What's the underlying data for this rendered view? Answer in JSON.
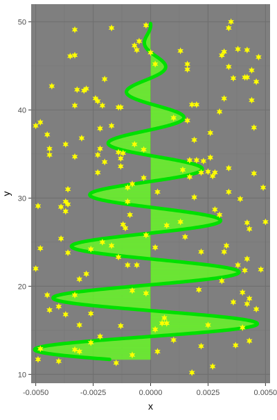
{
  "colors": {
    "panel_bg": "#7f7f7f",
    "grid_major": "#6f6f6f",
    "grid_minor": "#777777",
    "spiral_line": "#00e000",
    "spiral_fill": "#66ff22",
    "stars": "#ffff00",
    "tick_text": "#4d4d4d",
    "axis_title": "#000000"
  },
  "chart_data": {
    "type": "scatter",
    "title": "",
    "xlabel": "x",
    "ylabel": "y",
    "xlim": [
      -0.0052,
      0.0052
    ],
    "ylim": [
      9.0,
      52.0
    ],
    "x_ticks": [
      -0.005,
      -0.0025,
      0.0,
      0.0025,
      0.005
    ],
    "x_tick_labels": [
      "-0.0050",
      "-0.0025",
      "0.0000",
      "0.0025",
      "0.0050"
    ],
    "y_ticks": [
      10,
      20,
      30,
      40,
      50
    ],
    "y_tick_labels": [
      "10",
      "20",
      "30",
      "40",
      "50"
    ],
    "grid": true,
    "legend": "none",
    "spiral": {
      "description_points": "damped sine spiral: x = a(y)·sin(phase), amplitude shrinking with y",
      "y_start": 11.7,
      "y_end": 49.8,
      "amplitude_start": 0.0052,
      "amplitude_end": 0.0,
      "turns": 6.5,
      "fill_from_center": true
    },
    "stars": [
      {
        "x": -0.0049,
        "y": 11.7
      },
      {
        "x": -0.0048,
        "y": 12.9
      },
      {
        "x": -0.004,
        "y": 11.5
      },
      {
        "x": -0.0033,
        "y": 12.8
      },
      {
        "x": -0.0031,
        "y": 12.6
      },
      {
        "x": -0.0015,
        "y": 11.3
      },
      {
        "x": -0.0008,
        "y": 12.2
      },
      {
        "x": 0.0003,
        "y": 12.6
      },
      {
        "x": 0.0018,
        "y": 10.2
      },
      {
        "x": 0.0027,
        "y": 10.9
      },
      {
        "x": 0.0037,
        "y": 13.3
      },
      {
        "x": 0.0043,
        "y": 13.8
      },
      {
        "x": 0.001,
        "y": 13.9
      },
      {
        "x": -0.0022,
        "y": 14.3
      },
      {
        "x": 0.0025,
        "y": 15.6
      },
      {
        "x": -0.0037,
        "y": 16.8
      },
      {
        "x": -0.0044,
        "y": 17.3
      },
      {
        "x": -0.004,
        "y": 17.7
      },
      {
        "x": -0.0026,
        "y": 16.9
      },
      {
        "x": -0.0013,
        "y": 15.5
      },
      {
        "x": 0.0005,
        "y": 15.8
      },
      {
        "x": 0.0006,
        "y": 16.4
      },
      {
        "x": 0.0007,
        "y": 15.8
      },
      {
        "x": 0.0002,
        "y": 15.1
      },
      {
        "x": 0.004,
        "y": 15.3
      },
      {
        "x": 0.0046,
        "y": 17.4
      },
      {
        "x": 0.0043,
        "y": 18.6
      },
      {
        "x": 0.0042,
        "y": 18.0
      },
      {
        "x": -0.0008,
        "y": 19.5
      },
      {
        "x": -0.0033,
        "y": 19.0
      },
      {
        "x": -0.0031,
        "y": 20.8
      },
      {
        "x": -0.0028,
        "y": 21.4
      },
      {
        "x": -0.005,
        "y": 22.0
      },
      {
        "x": -0.0048,
        "y": 24.3
      },
      {
        "x": -0.0036,
        "y": 23.8
      },
      {
        "x": -0.0026,
        "y": 24.2
      },
      {
        "x": -0.0014,
        "y": 23.3
      },
      {
        "x": -0.001,
        "y": 22.4
      },
      {
        "x": -0.0006,
        "y": 22.4
      },
      {
        "x": 0.0002,
        "y": 24.4
      },
      {
        "x": 0.0015,
        "y": 25.6
      },
      {
        "x": 0.0022,
        "y": 23.9
      },
      {
        "x": 0.0031,
        "y": 20.6
      },
      {
        "x": 0.0033,
        "y": 24.6
      },
      {
        "x": 0.0032,
        "y": 23.9
      },
      {
        "x": 0.0038,
        "y": 22.4
      },
      {
        "x": 0.0041,
        "y": 21.8
      },
      {
        "x": 0.0042,
        "y": 23.1
      },
      {
        "x": 0.0048,
        "y": 21.9
      },
      {
        "x": -0.0039,
        "y": 25.4
      },
      {
        "x": -0.0021,
        "y": 25.0
      },
      {
        "x": -0.0002,
        "y": 25.8
      },
      {
        "x": 0.0007,
        "y": 26.9
      },
      {
        "x": 0.0013,
        "y": 27.3
      },
      {
        "x": -0.0012,
        "y": 27.0
      },
      {
        "x": -0.0011,
        "y": 26.6
      },
      {
        "x": 0.0028,
        "y": 28.7
      },
      {
        "x": 0.003,
        "y": 28.1
      },
      {
        "x": 0.0042,
        "y": 27.2
      },
      {
        "x": 0.0043,
        "y": 26.5
      },
      {
        "x": 0.005,
        "y": 27.3
      },
      {
        "x": -0.0049,
        "y": 29.1
      },
      {
        "x": -0.0039,
        "y": 29.0
      },
      {
        "x": -0.0037,
        "y": 28.5
      },
      {
        "x": -0.0037,
        "y": 29.6
      },
      {
        "x": -0.0036,
        "y": 29.3
      },
      {
        "x": -0.001,
        "y": 29.6
      },
      {
        "x": -0.0009,
        "y": 28.1
      },
      {
        "x": 0.0003,
        "y": 30.7
      },
      {
        "x": 0.0019,
        "y": 30.1
      },
      {
        "x": 0.0034,
        "y": 30.7
      },
      {
        "x": 0.0039,
        "y": 29.9
      },
      {
        "x": 0.0049,
        "y": 31.2
      },
      {
        "x": -0.001,
        "y": 31.2
      },
      {
        "x": -0.0008,
        "y": 31.6
      },
      {
        "x": -0.0003,
        "y": 32.3
      },
      {
        "x": 0.0017,
        "y": 32.4
      },
      {
        "x": 0.0022,
        "y": 32.9
      },
      {
        "x": 0.0025,
        "y": 33.0
      },
      {
        "x": 0.0027,
        "y": 32.5
      },
      {
        "x": 0.0028,
        "y": 32.9
      },
      {
        "x": 0.0034,
        "y": 33.4
      },
      {
        "x": 0.0045,
        "y": 32.8
      },
      {
        "x": -0.0023,
        "y": 32.9
      },
      {
        "x": -0.0013,
        "y": 33.6
      },
      {
        "x": 0.0014,
        "y": 33.2
      },
      {
        "x": 0.002,
        "y": 34.3
      },
      {
        "x": 0.0023,
        "y": 34.2
      },
      {
        "x": 0.0026,
        "y": 34.6
      },
      {
        "x": 0.0017,
        "y": 34.3
      },
      {
        "x": -0.0044,
        "y": 34.9
      },
      {
        "x": -0.0037,
        "y": 36.1
      },
      {
        "x": -0.0044,
        "y": 35.6
      },
      {
        "x": -0.0033,
        "y": 34.7
      },
      {
        "x": -0.0023,
        "y": 34.9
      },
      {
        "x": -0.0022,
        "y": 35.6
      },
      {
        "x": -0.002,
        "y": 34.1
      },
      {
        "x": -0.0013,
        "y": 34.5
      },
      {
        "x": -0.0014,
        "y": 35.2
      },
      {
        "x": -0.0003,
        "y": 35.5
      },
      {
        "x": -0.003,
        "y": 36.8
      },
      {
        "x": -0.0007,
        "y": 36.1
      },
      {
        "x": -0.0012,
        "y": 35.1
      },
      {
        "x": -0.0045,
        "y": 37.2
      },
      {
        "x": -0.005,
        "y": 38.2
      },
      {
        "x": -0.0048,
        "y": 38.6
      },
      {
        "x": -0.0017,
        "y": 38.2
      },
      {
        "x": 0.001,
        "y": 39.1
      },
      {
        "x": -0.0014,
        "y": 40.3
      },
      {
        "x": -0.0013,
        "y": 40.3
      },
      {
        "x": -0.0021,
        "y": 40.5
      },
      {
        "x": -0.0033,
        "y": 40.5
      },
      {
        "x": 0.002,
        "y": 40.6
      },
      {
        "x": 0.003,
        "y": 39.8
      },
      {
        "x": 0.0045,
        "y": 38.0
      },
      {
        "x": 0.0018,
        "y": 40.6
      },
      {
        "x": 0.0032,
        "y": 41.3
      },
      {
        "x": 0.0044,
        "y": 41.1
      },
      {
        "x": -0.0023,
        "y": 41.0
      },
      {
        "x": -0.0024,
        "y": 41.3
      },
      {
        "x": -0.0032,
        "y": 42.3
      },
      {
        "x": -0.0029,
        "y": 42.2
      },
      {
        "x": -0.0028,
        "y": 42.4
      },
      {
        "x": -0.0043,
        "y": 42.7
      },
      {
        "x": -0.002,
        "y": 43.5
      },
      {
        "x": 0.0036,
        "y": 43.6
      },
      {
        "x": 0.0041,
        "y": 43.7
      },
      {
        "x": 0.0046,
        "y": 43.2
      },
      {
        "x": 0.0042,
        "y": 43.7
      },
      {
        "x": 0.0044,
        "y": 44.5
      },
      {
        "x": 0.0034,
        "y": 44.9
      },
      {
        "x": 0.0016,
        "y": 44.6
      },
      {
        "x": 0.0016,
        "y": 45.2
      },
      {
        "x": 0.0002,
        "y": 45.2
      },
      {
        "x": 0.0,
        "y": 46.5
      },
      {
        "x": -0.0035,
        "y": 46.1
      },
      {
        "x": -0.0033,
        "y": 46.2
      },
      {
        "x": 0.0013,
        "y": 46.7
      },
      {
        "x": 0.0032,
        "y": 46.6
      },
      {
        "x": 0.0042,
        "y": 46.8
      },
      {
        "x": 0.0038,
        "y": 46.9
      },
      {
        "x": 0.0031,
        "y": 46.2
      },
      {
        "x": 0.0047,
        "y": 46.0
      },
      {
        "x": -0.0007,
        "y": 47.3
      },
      {
        "x": -0.0005,
        "y": 47.8
      },
      {
        "x": -0.0006,
        "y": 46.8
      },
      {
        "x": -0.0033,
        "y": 49.1
      },
      {
        "x": -0.0017,
        "y": 49.3
      },
      {
        "x": -0.0002,
        "y": 49.6
      },
      {
        "x": 0.0035,
        "y": 50.0
      },
      {
        "x": 0.0034,
        "y": 49.3
      },
      {
        "x": -0.0022,
        "y": 37.9
      },
      {
        "x": 0.0026,
        "y": 37.4
      },
      {
        "x": 0.0019,
        "y": 36.6
      },
      {
        "x": -0.0036,
        "y": 31.0
      },
      {
        "x": 0.0016,
        "y": 38.8
      },
      {
        "x": -0.0017,
        "y": 24.6
      },
      {
        "x": -0.0031,
        "y": 15.6
      },
      {
        "x": -0.0026,
        "y": 13.6
      },
      {
        "x": 0.0022,
        "y": 13.2
      },
      {
        "x": 0.0036,
        "y": 18.2
      },
      {
        "x": 0.004,
        "y": 19.3
      },
      {
        "x": -0.0045,
        "y": 19.0
      },
      {
        "x": -0.0002,
        "y": 19.2
      },
      {
        "x": 0.0021,
        "y": 19.6
      }
    ]
  }
}
